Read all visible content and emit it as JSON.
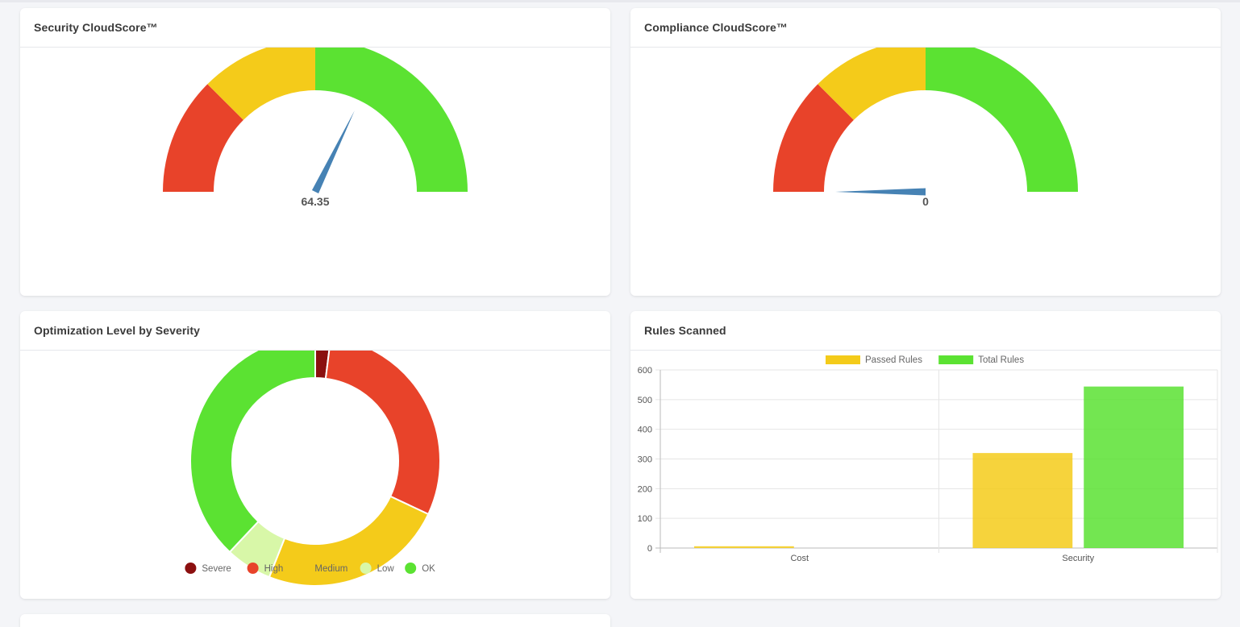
{
  "cards": {
    "security": {
      "title": "Security CloudScore™"
    },
    "compliance": {
      "title": "Compliance CloudScore™"
    },
    "optimization": {
      "title": "Optimization Level by Severity"
    },
    "rules": {
      "title": "Rules Scanned"
    }
  },
  "chart_data": [
    {
      "type": "gauge",
      "title": "Security CloudScore™",
      "value": 64.35,
      "value_label": "64.35",
      "range": [
        0,
        100
      ],
      "bands": [
        {
          "from": 0,
          "to": 25,
          "color": "#e8432a"
        },
        {
          "from": 25,
          "to": 50,
          "color": "#f4cb1a"
        },
        {
          "from": 50,
          "to": 100,
          "color": "#5be232"
        }
      ],
      "needle_color": "#4682b4"
    },
    {
      "type": "gauge",
      "title": "Compliance CloudScore™",
      "value": 0,
      "value_label": "0",
      "range": [
        0,
        100
      ],
      "bands": [
        {
          "from": 0,
          "to": 25,
          "color": "#e8432a"
        },
        {
          "from": 25,
          "to": 50,
          "color": "#f4cb1a"
        },
        {
          "from": 50,
          "to": 100,
          "color": "#5be232"
        }
      ],
      "needle_color": "#4682b4"
    },
    {
      "type": "pie",
      "title": "Optimization Level by Severity",
      "donut": true,
      "legend_position": "bottom",
      "slices": [
        {
          "label": "Severe",
          "value": 2,
          "color": "#8b0f0f"
        },
        {
          "label": "High",
          "value": 30,
          "color": "#e8432a"
        },
        {
          "label": "Medium",
          "value": 24,
          "color": "#f4cb1a"
        },
        {
          "label": "Low",
          "value": 6,
          "color": "#d8f7a8"
        },
        {
          "label": "OK",
          "value": 38,
          "color": "#5be232"
        }
      ]
    },
    {
      "type": "bar",
      "title": "Rules Scanned",
      "categories": [
        "Cost",
        "Security"
      ],
      "series": [
        {
          "name": "Passed Rules",
          "values": [
            6,
            320
          ],
          "color": "#f4cb1a"
        },
        {
          "name": "Total Rules",
          "values": [
            0,
            544
          ],
          "color": "#5be232"
        }
      ],
      "ylim": [
        0,
        600
      ],
      "yticks": [
        0,
        100,
        200,
        300,
        400,
        500,
        600
      ],
      "legend_position": "top",
      "grid": true
    }
  ]
}
